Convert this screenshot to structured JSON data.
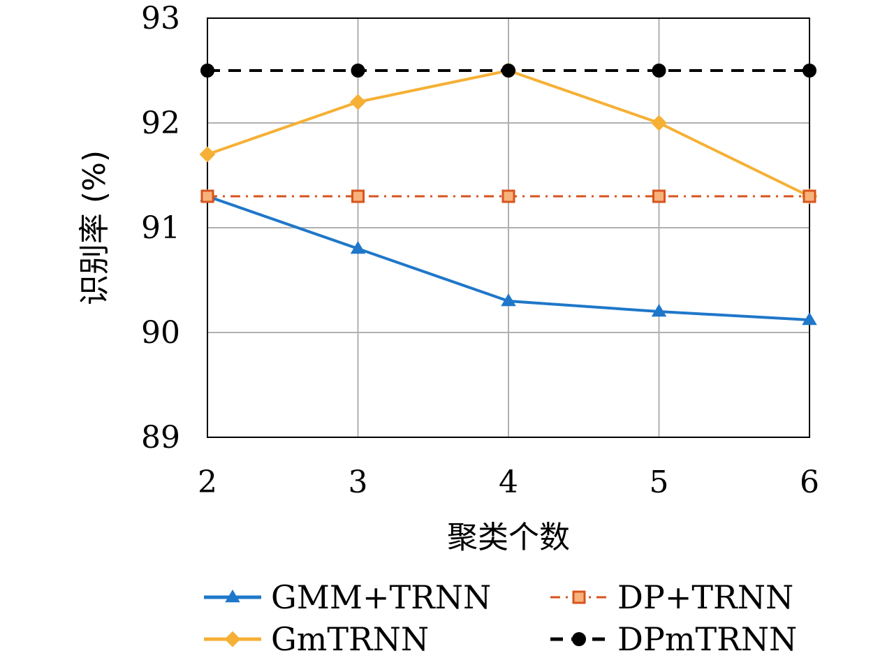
{
  "chart_data": {
    "type": "line",
    "xlabel": "聚类个数",
    "ylabel": "识别率 (%)",
    "x": [
      2,
      3,
      4,
      5,
      6
    ],
    "xlim": [
      2,
      6
    ],
    "ylim": [
      89,
      93
    ],
    "xticks": [
      "2",
      "3",
      "4",
      "5",
      "6"
    ],
    "yticks": [
      "89",
      "90",
      "91",
      "92",
      "93"
    ],
    "grid": true,
    "legend_position": "bottom",
    "series": [
      {
        "name": "GMM+TRNN",
        "values": [
          91.3,
          90.8,
          90.3,
          90.2,
          90.12
        ],
        "color": "#1f77c9",
        "marker": "triangle",
        "dash": "solid"
      },
      {
        "name": "DP+TRNN",
        "values": [
          91.3,
          91.3,
          91.3,
          91.3,
          91.3
        ],
        "color": "#d9531e",
        "marker": "square",
        "dash": "dash-dot"
      },
      {
        "name": "GmTRNN",
        "values": [
          91.7,
          92.2,
          92.5,
          92.0,
          91.3
        ],
        "color": "#f5b035",
        "marker": "diamond",
        "dash": "solid"
      },
      {
        "name": "DPmTRNN",
        "values": [
          92.5,
          92.5,
          92.5,
          92.5,
          92.5
        ],
        "color": "#000000",
        "marker": "circle",
        "dash": "dashed"
      }
    ]
  }
}
